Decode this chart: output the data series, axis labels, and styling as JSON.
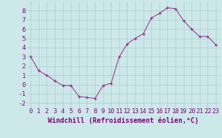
{
  "x": [
    0,
    1,
    2,
    3,
    4,
    5,
    6,
    7,
    8,
    9,
    10,
    11,
    12,
    13,
    14,
    15,
    16,
    17,
    18,
    19,
    20,
    21,
    22,
    23
  ],
  "y": [
    3.0,
    1.5,
    1.0,
    0.4,
    -0.1,
    -0.1,
    -1.3,
    -1.4,
    -1.5,
    -0.1,
    0.15,
    3.0,
    4.4,
    5.0,
    5.5,
    7.2,
    7.7,
    8.3,
    8.2,
    6.9,
    6.0,
    5.2,
    5.2,
    4.3
  ],
  "line_color": "#993399",
  "marker": "+",
  "marker_color": "#993399",
  "marker_size": 3,
  "xlabel": "Windchill (Refroidissement éolien,°C)",
  "xlim": [
    -0.5,
    23.5
  ],
  "ylim": [
    -2.5,
    9.0
  ],
  "yticks": [
    -2,
    -1,
    0,
    1,
    2,
    3,
    4,
    5,
    6,
    7,
    8
  ],
  "xticks": [
    0,
    1,
    2,
    3,
    4,
    5,
    6,
    7,
    8,
    9,
    10,
    11,
    12,
    13,
    14,
    15,
    16,
    17,
    18,
    19,
    20,
    21,
    22,
    23
  ],
  "grid_color": "#aacccc",
  "bg_color": "#cce8e8",
  "tick_color": "#800080",
  "label_color": "#800080",
  "tick_fontsize": 6.5,
  "xlabel_fontsize": 7.0
}
